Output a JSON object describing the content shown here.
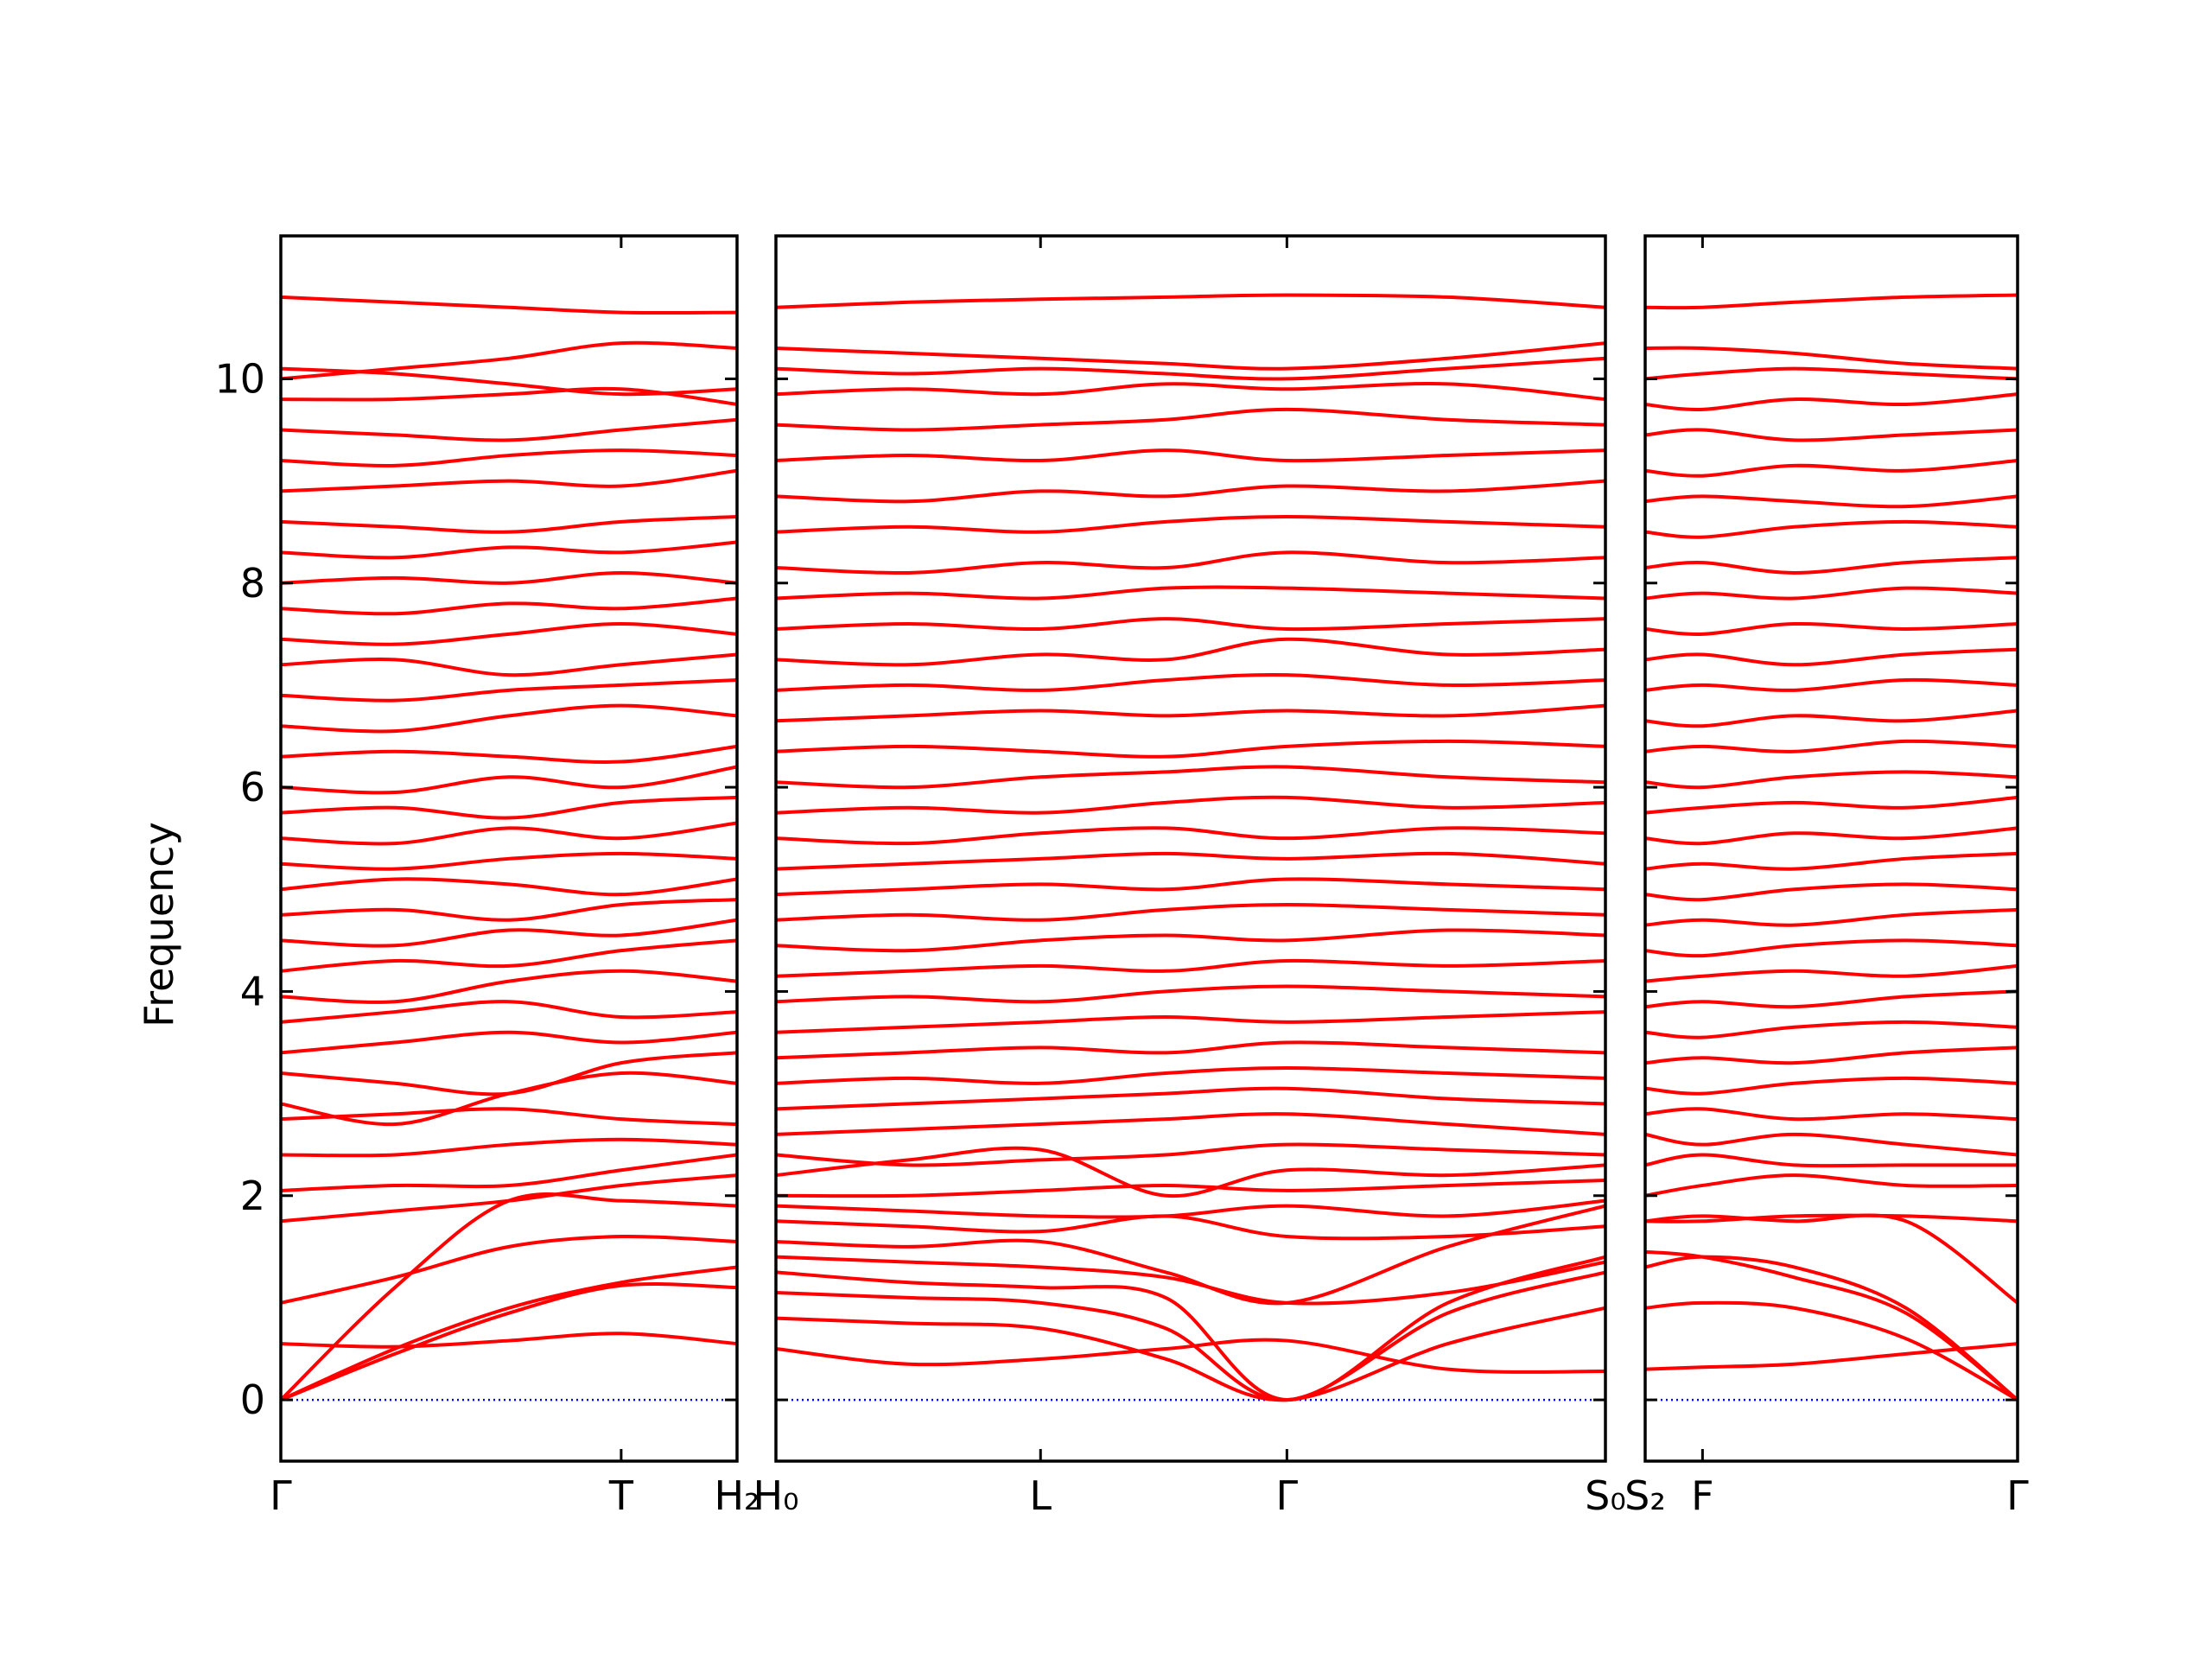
{
  "chart_data": [
    {
      "type": "line",
      "ylabel": "Frequency",
      "ytick_labels": true,
      "color": "#ff0000",
      "zero_line_color": "#0000ff",
      "x": [
        0,
        0.25,
        0.5,
        0.746,
        1
      ],
      "xlim": [
        0,
        1
      ],
      "xticks": [
        {
          "value": 0,
          "label": "Γ"
        },
        {
          "value": 0.746,
          "label": "T"
        },
        {
          "value": 1,
          "label": "H₂"
        }
      ],
      "ylim": [
        -0.6,
        11.4
      ],
      "yticks": [
        0,
        2,
        4,
        6,
        8,
        10
      ],
      "series": [
        {
          "values": [
            0,
            0.45,
            0.85,
            1.12,
            1.1
          ]
        },
        {
          "values": [
            0,
            1.1,
            1.95,
            1.95,
            1.9
          ]
        },
        {
          "values": [
            0,
            0.5,
            0.9,
            1.15,
            1.3
          ]
        },
        {
          "values": [
            0.55,
            0.52,
            0.58,
            0.65,
            0.55
          ]
        },
        {
          "values": [
            0.95,
            1.2,
            1.5,
            1.6,
            1.55
          ]
        },
        {
          "values": [
            1.75,
            1.85,
            1.95,
            2.1,
            2.2
          ]
        },
        {
          "values": [
            2.05,
            2.1,
            2.1,
            2.25,
            2.4
          ]
        },
        {
          "values": [
            2.4,
            2.4,
            2.5,
            2.55,
            2.5
          ]
        },
        {
          "values": [
            2.75,
            2.8,
            2.85,
            2.75,
            2.7
          ]
        },
        {
          "values": [
            2.9,
            2.7,
            3.0,
            3.2,
            3.1
          ]
        },
        {
          "values": [
            3.2,
            3.1,
            3.0,
            3.3,
            3.4
          ]
        },
        {
          "values": [
            3.4,
            3.5,
            3.6,
            3.5,
            3.6
          ]
        },
        {
          "values": [
            3.7,
            3.8,
            3.9,
            3.75,
            3.8
          ]
        },
        {
          "values": [
            3.95,
            3.9,
            4.1,
            4.2,
            4.1
          ]
        },
        {
          "values": [
            4.2,
            4.3,
            4.25,
            4.4,
            4.5
          ]
        },
        {
          "values": [
            4.5,
            4.45,
            4.6,
            4.55,
            4.7
          ]
        },
        {
          "values": [
            4.75,
            4.8,
            4.7,
            4.85,
            4.9
          ]
        },
        {
          "values": [
            5.0,
            5.1,
            5.05,
            4.95,
            5.1
          ]
        },
        {
          "values": [
            5.25,
            5.2,
            5.3,
            5.35,
            5.3
          ]
        },
        {
          "values": [
            5.5,
            5.45,
            5.6,
            5.5,
            5.65
          ]
        },
        {
          "values": [
            5.75,
            5.8,
            5.7,
            5.85,
            5.9
          ]
        },
        {
          "values": [
            6.0,
            5.95,
            6.1,
            6.0,
            6.2
          ]
        },
        {
          "values": [
            6.3,
            6.35,
            6.3,
            6.25,
            6.4
          ]
        },
        {
          "values": [
            6.6,
            6.55,
            6.7,
            6.8,
            6.7
          ]
        },
        {
          "values": [
            6.9,
            6.85,
            6.95,
            7.0,
            7.05
          ]
        },
        {
          "values": [
            7.2,
            7.25,
            7.1,
            7.2,
            7.3
          ]
        },
        {
          "values": [
            7.45,
            7.4,
            7.5,
            7.6,
            7.5
          ]
        },
        {
          "values": [
            7.75,
            7.7,
            7.8,
            7.75,
            7.85
          ]
        },
        {
          "values": [
            8.0,
            8.05,
            8.0,
            8.1,
            8.0
          ]
        },
        {
          "values": [
            8.3,
            8.25,
            8.35,
            8.3,
            8.4
          ]
        },
        {
          "values": [
            8.6,
            8.55,
            8.5,
            8.6,
            8.65
          ]
        },
        {
          "values": [
            8.9,
            8.95,
            9.0,
            8.95,
            9.1
          ]
        },
        {
          "values": [
            9.2,
            9.15,
            9.25,
            9.3,
            9.25
          ]
        },
        {
          "values": [
            9.5,
            9.45,
            9.4,
            9.5,
            9.6
          ]
        },
        {
          "values": [
            9.8,
            9.8,
            9.85,
            9.9,
            9.75
          ]
        },
        {
          "values": [
            10.0,
            10.1,
            10.2,
            10.35,
            10.3
          ]
        },
        {
          "values": [
            10.1,
            10.05,
            9.95,
            9.85,
            9.9
          ]
        },
        {
          "values": [
            10.8,
            10.75,
            10.7,
            10.65,
            10.65
          ]
        }
      ]
    },
    {
      "type": "line",
      "ytick_labels": false,
      "color": "#ff0000",
      "zero_line_color": "#0000ff",
      "x": [
        0,
        0.16,
        0.319,
        0.47,
        0.616,
        0.81,
        1
      ],
      "xlim": [
        0,
        1
      ],
      "xticks": [
        {
          "value": 0,
          "label": "H₀"
        },
        {
          "value": 0.319,
          "label": "L"
        },
        {
          "value": 0.616,
          "label": "Γ"
        },
        {
          "value": 1,
          "label": "S₀"
        }
      ],
      "ylim": [
        -0.6,
        11.4
      ],
      "yticks": [
        0,
        2,
        4,
        6,
        8,
        10
      ],
      "series": [
        {
          "values": [
            0.5,
            0.35,
            0.4,
            0.5,
            0.58,
            0.3,
            0.28
          ]
        },
        {
          "values": [
            0.8,
            0.75,
            0.7,
            0.4,
            0,
            0.55,
            0.9
          ]
        },
        {
          "values": [
            1.05,
            1.0,
            0.95,
            0.7,
            0,
            0.85,
            1.25
          ]
        },
        {
          "values": [
            1.25,
            1.15,
            1.1,
            1.0,
            0,
            0.95,
            1.4
          ]
        },
        {
          "values": [
            1.4,
            1.35,
            1.3,
            1.2,
            0.95,
            1.05,
            1.35
          ]
        },
        {
          "values": [
            1.55,
            1.5,
            1.55,
            1.25,
            0.95,
            1.5,
            1.9
          ]
        },
        {
          "values": [
            1.75,
            1.7,
            1.65,
            1.8,
            1.6,
            1.6,
            1.7
          ]
        },
        {
          "values": [
            1.9,
            1.85,
            1.8,
            1.8,
            1.9,
            1.8,
            1.95
          ]
        },
        {
          "values": [
            2.0,
            2.0,
            2.05,
            2.1,
            2.05,
            2.1,
            2.15
          ]
        },
        {
          "values": [
            2.2,
            2.35,
            2.45,
            2.0,
            2.25,
            2.2,
            2.3
          ]
        },
        {
          "values": [
            2.4,
            2.3,
            2.35,
            2.4,
            2.5,
            2.45,
            2.4
          ]
        },
        {
          "values": [
            2.6,
            2.65,
            2.7,
            2.75,
            2.8,
            2.7,
            2.6
          ]
        },
        {
          "values": [
            2.85,
            2.9,
            2.95,
            3.0,
            3.05,
            2.95,
            2.9
          ]
        },
        {
          "values": [
            3.1,
            3.15,
            3.1,
            3.2,
            3.25,
            3.2,
            3.15
          ]
        },
        {
          "values": [
            3.35,
            3.4,
            3.45,
            3.4,
            3.5,
            3.45,
            3.4
          ]
        },
        {
          "values": [
            3.6,
            3.65,
            3.7,
            3.75,
            3.7,
            3.75,
            3.8
          ]
        },
        {
          "values": [
            3.9,
            3.95,
            3.9,
            4.0,
            4.05,
            4.0,
            3.95
          ]
        },
        {
          "values": [
            4.15,
            4.2,
            4.25,
            4.2,
            4.3,
            4.25,
            4.3
          ]
        },
        {
          "values": [
            4.45,
            4.4,
            4.5,
            4.55,
            4.5,
            4.6,
            4.55
          ]
        },
        {
          "values": [
            4.7,
            4.75,
            4.7,
            4.8,
            4.85,
            4.8,
            4.75
          ]
        },
        {
          "values": [
            4.95,
            5.0,
            5.05,
            5.0,
            5.1,
            5.05,
            5.0
          ]
        },
        {
          "values": [
            5.2,
            5.25,
            5.3,
            5.35,
            5.3,
            5.35,
            5.25
          ]
        },
        {
          "values": [
            5.5,
            5.45,
            5.55,
            5.6,
            5.5,
            5.6,
            5.55
          ]
        },
        {
          "values": [
            5.75,
            5.8,
            5.75,
            5.85,
            5.9,
            5.8,
            5.85
          ]
        },
        {
          "values": [
            6.05,
            6.0,
            6.1,
            6.15,
            6.2,
            6.1,
            6.05
          ]
        },
        {
          "values": [
            6.35,
            6.4,
            6.35,
            6.3,
            6.4,
            6.45,
            6.4
          ]
        },
        {
          "values": [
            6.65,
            6.7,
            6.75,
            6.7,
            6.75,
            6.7,
            6.8
          ]
        },
        {
          "values": [
            6.95,
            7.0,
            6.95,
            7.05,
            7.1,
            7.0,
            7.05
          ]
        },
        {
          "values": [
            7.25,
            7.2,
            7.3,
            7.25,
            7.45,
            7.3,
            7.35
          ]
        },
        {
          "values": [
            7.55,
            7.6,
            7.55,
            7.65,
            7.55,
            7.6,
            7.65
          ]
        },
        {
          "values": [
            7.85,
            7.9,
            7.85,
            7.95,
            7.95,
            7.9,
            7.85
          ]
        },
        {
          "values": [
            8.15,
            8.1,
            8.2,
            8.15,
            8.3,
            8.2,
            8.25
          ]
        },
        {
          "values": [
            8.5,
            8.55,
            8.5,
            8.6,
            8.65,
            8.6,
            8.55
          ]
        },
        {
          "values": [
            8.85,
            8.8,
            8.9,
            8.85,
            8.95,
            8.9,
            9.0
          ]
        },
        {
          "values": [
            9.2,
            9.25,
            9.2,
            9.3,
            9.2,
            9.25,
            9.3
          ]
        },
        {
          "values": [
            9.55,
            9.5,
            9.55,
            9.6,
            9.7,
            9.6,
            9.55
          ]
        },
        {
          "values": [
            9.85,
            9.9,
            9.85,
            9.95,
            9.9,
            9.95,
            9.8
          ]
        },
        {
          "values": [
            10.1,
            10.05,
            10.1,
            10.05,
            10.0,
            10.1,
            10.2
          ]
        },
        {
          "values": [
            10.3,
            10.25,
            10.2,
            10.15,
            10.1,
            10.2,
            10.35
          ]
        },
        {
          "values": [
            10.7,
            10.75,
            10.78,
            10.8,
            10.82,
            10.8,
            10.7
          ]
        }
      ]
    },
    {
      "type": "line",
      "ytick_labels": false,
      "color": "#ff0000",
      "zero_line_color": "#0000ff",
      "x": [
        0,
        0.154,
        0.4,
        0.7,
        1
      ],
      "xlim": [
        0,
        1
      ],
      "xticks": [
        {
          "value": 0,
          "label": "S₂"
        },
        {
          "value": 0.154,
          "label": "F"
        },
        {
          "value": 1,
          "label": "Γ"
        }
      ],
      "ylim": [
        -0.6,
        11.4
      ],
      "yticks": [
        0,
        2,
        4,
        6,
        8,
        10
      ],
      "series": [
        {
          "values": [
            0.3,
            0.32,
            0.35,
            0.45,
            0.55
          ]
        },
        {
          "values": [
            0.9,
            0.95,
            0.9,
            0.6,
            0
          ]
        },
        {
          "values": [
            1.3,
            1.4,
            1.3,
            0.9,
            0
          ]
        },
        {
          "values": [
            1.45,
            1.4,
            1.2,
            0.85,
            0
          ]
        },
        {
          "values": [
            1.75,
            1.8,
            1.75,
            1.75,
            0.95
          ]
        },
        {
          "values": [
            1.75,
            1.75,
            1.8,
            1.8,
            1.75
          ]
        },
        {
          "values": [
            2.0,
            2.1,
            2.2,
            2.1,
            2.1
          ]
        },
        {
          "values": [
            2.3,
            2.4,
            2.3,
            2.3,
            2.3
          ]
        },
        {
          "values": [
            2.6,
            2.5,
            2.6,
            2.5,
            2.4
          ]
        },
        {
          "values": [
            2.8,
            2.85,
            2.75,
            2.8,
            2.75
          ]
        },
        {
          "values": [
            3.05,
            3.0,
            3.1,
            3.15,
            3.1
          ]
        },
        {
          "values": [
            3.3,
            3.35,
            3.3,
            3.4,
            3.45
          ]
        },
        {
          "values": [
            3.6,
            3.55,
            3.65,
            3.7,
            3.65
          ]
        },
        {
          "values": [
            3.85,
            3.9,
            3.85,
            3.95,
            4.0
          ]
        },
        {
          "values": [
            4.1,
            4.15,
            4.2,
            4.15,
            4.25
          ]
        },
        {
          "values": [
            4.4,
            4.35,
            4.45,
            4.5,
            4.45
          ]
        },
        {
          "values": [
            4.65,
            4.7,
            4.65,
            4.75,
            4.8
          ]
        },
        {
          "values": [
            4.95,
            4.9,
            5.0,
            5.05,
            5.0
          ]
        },
        {
          "values": [
            5.2,
            5.25,
            5.2,
            5.3,
            5.35
          ]
        },
        {
          "values": [
            5.5,
            5.45,
            5.55,
            5.5,
            5.6
          ]
        },
        {
          "values": [
            5.75,
            5.8,
            5.85,
            5.8,
            5.9
          ]
        },
        {
          "values": [
            6.05,
            6.0,
            6.1,
            6.15,
            6.1
          ]
        },
        {
          "values": [
            6.35,
            6.4,
            6.35,
            6.45,
            6.4
          ]
        },
        {
          "values": [
            6.65,
            6.6,
            6.7,
            6.65,
            6.75
          ]
        },
        {
          "values": [
            6.95,
            7.0,
            6.95,
            7.05,
            7.0
          ]
        },
        {
          "values": [
            7.25,
            7.3,
            7.2,
            7.3,
            7.35
          ]
        },
        {
          "values": [
            7.55,
            7.5,
            7.6,
            7.55,
            7.6
          ]
        },
        {
          "values": [
            7.85,
            7.9,
            7.85,
            7.95,
            7.9
          ]
        },
        {
          "values": [
            8.15,
            8.2,
            8.1,
            8.2,
            8.25
          ]
        },
        {
          "values": [
            8.5,
            8.45,
            8.55,
            8.6,
            8.55
          ]
        },
        {
          "values": [
            8.8,
            8.85,
            8.8,
            8.75,
            8.85
          ]
        },
        {
          "values": [
            9.1,
            9.05,
            9.15,
            9.1,
            9.2
          ]
        },
        {
          "values": [
            9.45,
            9.5,
            9.4,
            9.45,
            9.5
          ]
        },
        {
          "values": [
            9.75,
            9.7,
            9.8,
            9.75,
            9.85
          ]
        },
        {
          "values": [
            10.0,
            10.05,
            10.1,
            10.05,
            10.0
          ]
        },
        {
          "values": [
            10.3,
            10.3,
            10.25,
            10.15,
            10.1
          ]
        },
        {
          "values": [
            10.7,
            10.7,
            10.75,
            10.8,
            10.82
          ]
        }
      ]
    }
  ]
}
